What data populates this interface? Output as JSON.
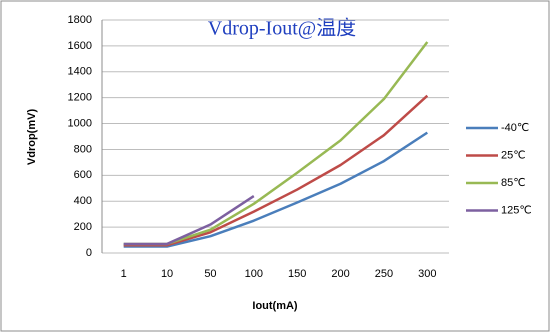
{
  "chart_data": {
    "type": "line",
    "title": "Vdrop-Iout@温度",
    "x_label": "Iout(mA)",
    "y_label": "Vdrop(mV)",
    "categories": [
      "1",
      "10",
      "50",
      "100",
      "150",
      "200",
      "250",
      "300"
    ],
    "series": [
      {
        "name": "-40℃",
        "color": "#4a7ebb",
        "values": [
          50,
          50,
          130,
          250,
          390,
          535,
          710,
          930
        ]
      },
      {
        "name": "25℃",
        "color": "#be4b48",
        "values": [
          60,
          60,
          160,
          320,
          490,
          680,
          910,
          1215
        ]
      },
      {
        "name": "85℃",
        "color": "#98b954",
        "values": [
          70,
          70,
          180,
          380,
          620,
          870,
          1190,
          1630
        ]
      },
      {
        "name": "125℃",
        "color": "#7d60a0",
        "values": [
          70,
          70,
          220,
          440,
          null,
          null,
          null,
          null
        ]
      }
    ],
    "ylim": [
      0,
      1800
    ],
    "yticks": [
      0,
      200,
      400,
      600,
      800,
      1000,
      1200,
      1400,
      1600,
      1800
    ],
    "grid": true,
    "legend": "right"
  }
}
